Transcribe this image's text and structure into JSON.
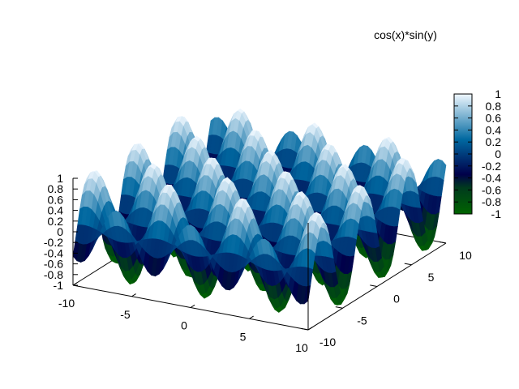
{
  "chart_data": {
    "type": "surface",
    "function": "cos(x)*sin(y)",
    "legend_label": "cos(x)*sin(y)",
    "xlim": [
      -10,
      10
    ],
    "ylim": [
      -10,
      10
    ],
    "zlim": [
      -1,
      1
    ],
    "x_ticks": [
      "-10",
      "-5",
      "0",
      "5",
      "10"
    ],
    "y_ticks": [
      "-10",
      "-5",
      "0",
      "5",
      "10"
    ],
    "z_ticks": [
      "1",
      "0.8",
      "0.6",
      "0.4",
      "0.2",
      "0",
      "-0.2",
      "-0.4",
      "-0.6",
      "-0.8",
      "-1"
    ],
    "colorbar_ticks": [
      "1",
      "0.8",
      "0.6",
      "0.4",
      "0.2",
      "0",
      "-0.2",
      "-0.4",
      "-0.6",
      "-0.8",
      "-1"
    ],
    "colormap": [
      "#006400",
      "#00004a",
      "#0068a0",
      "#f0f8ff"
    ],
    "grid": false,
    "legend_position": "top-right"
  }
}
